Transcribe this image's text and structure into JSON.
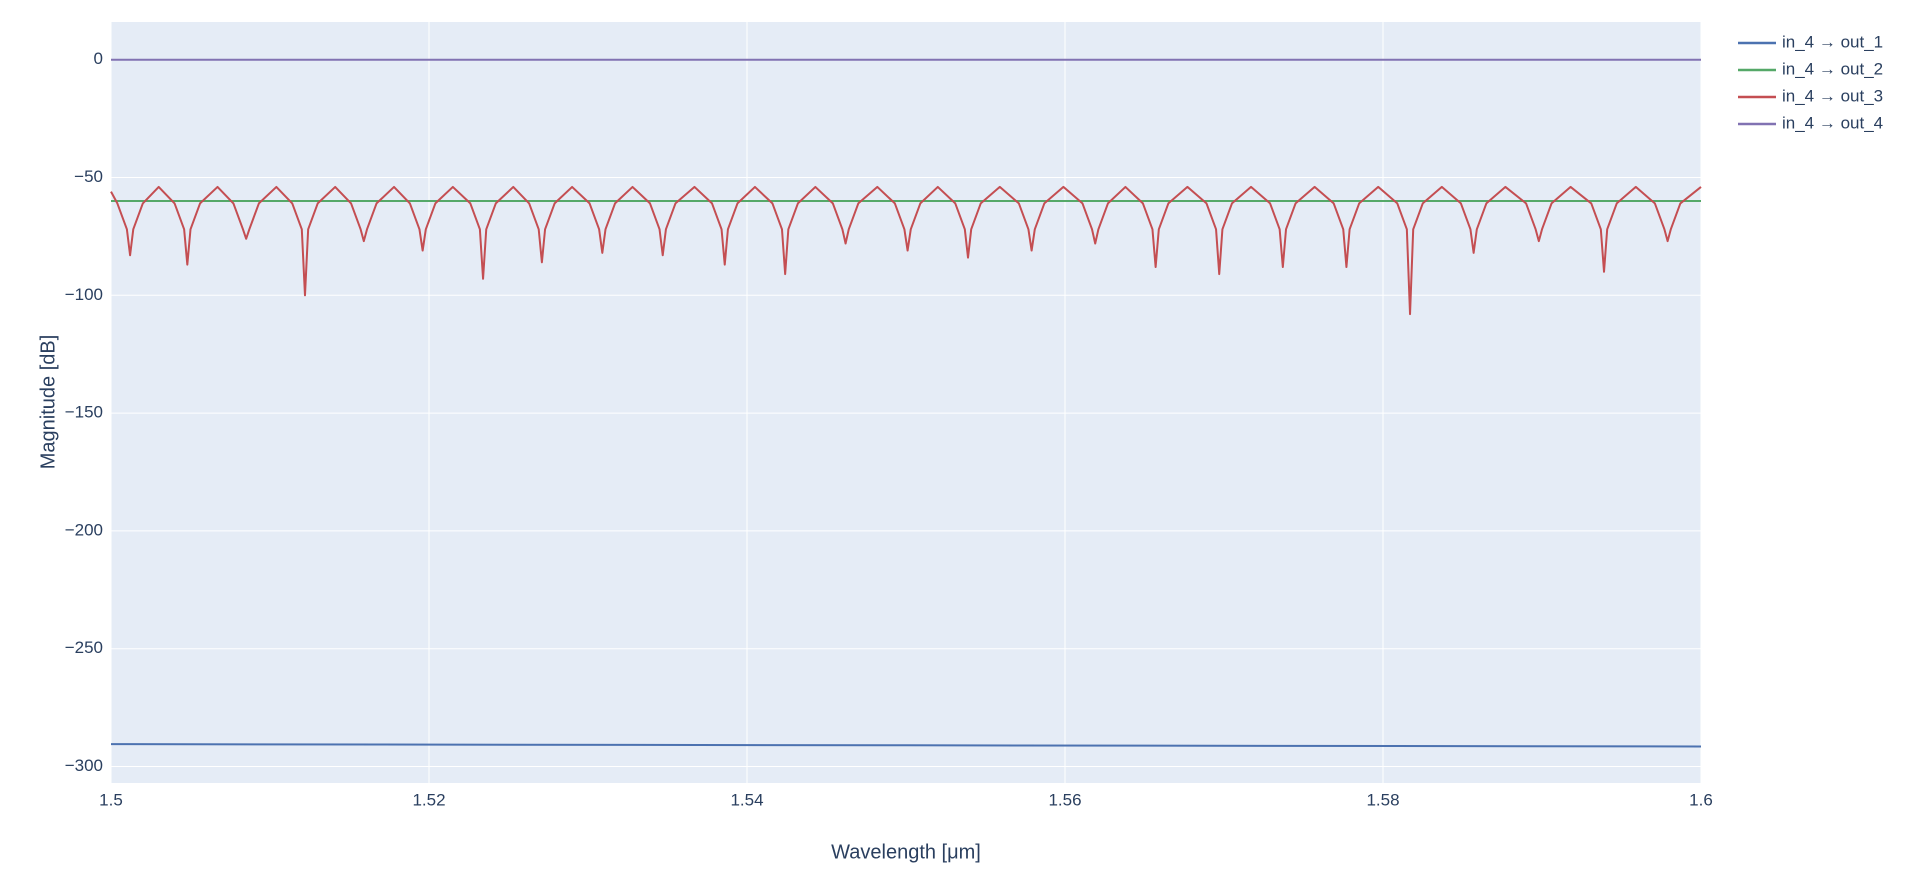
{
  "chart_data": {
    "type": "line",
    "xlabel": "Wavelength [μm]",
    "ylabel": "Magnitude [dB]",
    "xlim": [
      1.5,
      1.6
    ],
    "xticks": [
      1.5,
      1.52,
      1.54,
      1.56,
      1.58,
      1.6
    ],
    "ylim": [
      -307,
      16
    ],
    "yticks": [
      {
        "value": -300,
        "label": "−300"
      },
      {
        "value": -250,
        "label": "−250"
      },
      {
        "value": -200,
        "label": "−200"
      },
      {
        "value": -150,
        "label": "−150"
      },
      {
        "value": -100,
        "label": "−100"
      },
      {
        "value": -50,
        "label": "−50"
      },
      0
    ],
    "grid": true,
    "legend": "outside-top-right",
    "series": [
      {
        "name": "in_4 → out_1",
        "color": "#4c72b0",
        "x": [
          1.5,
          1.55,
          1.6
        ],
        "values": [
          -290.5,
          -291,
          -291.5
        ]
      },
      {
        "name": "in_4 → out_2",
        "color": "#55a868",
        "x": [
          1.5,
          1.6
        ],
        "values": [
          -60,
          -60
        ]
      },
      {
        "name": "in_4 → out_3",
        "color": "#c44e52",
        "x": [
          1.5,
          1.5004,
          1.501,
          1.5012,
          1.5014,
          1.502,
          1.503,
          1.504,
          1.5046,
          1.5048,
          1.505,
          1.5056,
          1.5067,
          1.5077,
          1.5083,
          1.5085,
          1.5087,
          1.5093,
          1.5104,
          1.5114,
          1.512,
          1.5122,
          1.5124,
          1.513,
          1.5141,
          1.5151,
          1.5157,
          1.5159,
          1.5161,
          1.5167,
          1.5178,
          1.5188,
          1.5194,
          1.5196,
          1.5198,
          1.5204,
          1.5215,
          1.5226,
          1.5232,
          1.5234,
          1.5236,
          1.5242,
          1.5253,
          1.5263,
          1.5269,
          1.5271,
          1.5273,
          1.5279,
          1.529,
          1.5301,
          1.5307,
          1.5309,
          1.5311,
          1.5317,
          1.5328,
          1.5339,
          1.5345,
          1.5347,
          1.5349,
          1.5355,
          1.5367,
          1.5378,
          1.5384,
          1.5386,
          1.5388,
          1.5394,
          1.5405,
          1.5416,
          1.5422,
          1.5424,
          1.5426,
          1.5432,
          1.5443,
          1.5454,
          1.546,
          1.5462,
          1.5464,
          1.547,
          1.5482,
          1.5493,
          1.5499,
          1.5501,
          1.5503,
          1.5509,
          1.552,
          1.5531,
          1.5537,
          1.5539,
          1.5541,
          1.5547,
          1.5559,
          1.5571,
          1.5577,
          1.5579,
          1.5581,
          1.5587,
          1.5599,
          1.5611,
          1.5617,
          1.5619,
          1.5621,
          1.5627,
          1.5638,
          1.5649,
          1.5655,
          1.5657,
          1.5659,
          1.5665,
          1.5677,
          1.5689,
          1.5695,
          1.5697,
          1.5699,
          1.5705,
          1.5717,
          1.5729,
          1.5735,
          1.5737,
          1.5739,
          1.5745,
          1.5757,
          1.5769,
          1.5775,
          1.5777,
          1.5779,
          1.5785,
          1.5797,
          1.5809,
          1.5815,
          1.5817,
          1.5819,
          1.5825,
          1.5837,
          1.5849,
          1.5855,
          1.5857,
          1.5859,
          1.5865,
          1.5877,
          1.589,
          1.5896,
          1.5898,
          1.59,
          1.5906,
          1.5918,
          1.5931,
          1.5937,
          1.5939,
          1.5941,
          1.5947,
          1.5959,
          1.5971,
          1.5977,
          1.5979,
          1.5981,
          1.5987,
          1.6
        ],
        "values": [
          -56,
          -61,
          -72,
          -83,
          -72,
          -61,
          -54,
          -61,
          -72,
          -87,
          -72,
          -61,
          -54,
          -61,
          -72,
          -76,
          -72,
          -61,
          -54,
          -61,
          -72,
          -100,
          -72,
          -61,
          -54,
          -61,
          -72,
          -77,
          -72,
          -61,
          -54,
          -61,
          -72,
          -81,
          -72,
          -61,
          -54,
          -61,
          -72,
          -93,
          -72,
          -61,
          -54,
          -61,
          -72,
          -86,
          -72,
          -61,
          -54,
          -61,
          -72,
          -82,
          -72,
          -61,
          -54,
          -61,
          -72,
          -83,
          -72,
          -61,
          -54,
          -61,
          -72,
          -87,
          -72,
          -61,
          -54,
          -61,
          -72,
          -91,
          -72,
          -61,
          -54,
          -61,
          -72,
          -78,
          -72,
          -61,
          -54,
          -61,
          -72,
          -81,
          -72,
          -61,
          -54,
          -61,
          -72,
          -84,
          -72,
          -61,
          -54,
          -61,
          -72,
          -81,
          -72,
          -61,
          -54,
          -61,
          -72,
          -78,
          -72,
          -61,
          -54,
          -61,
          -72,
          -88,
          -72,
          -61,
          -54,
          -61,
          -72,
          -91,
          -72,
          -61,
          -54,
          -61,
          -72,
          -88,
          -72,
          -61,
          -54,
          -61,
          -72,
          -88,
          -72,
          -61,
          -54,
          -61,
          -72,
          -108,
          -72,
          -61,
          -54,
          -61,
          -72,
          -82,
          -72,
          -61,
          -54,
          -61,
          -72,
          -77,
          -72,
          -61,
          -54,
          -61,
          -72,
          -90,
          -72,
          -61,
          -54,
          -61,
          -72,
          -77,
          -72,
          -61,
          -54
        ]
      },
      {
        "name": "in_4 → out_4",
        "color": "#8172b2",
        "x": [
          1.5,
          1.6
        ],
        "values": [
          0,
          0
        ]
      }
    ]
  }
}
